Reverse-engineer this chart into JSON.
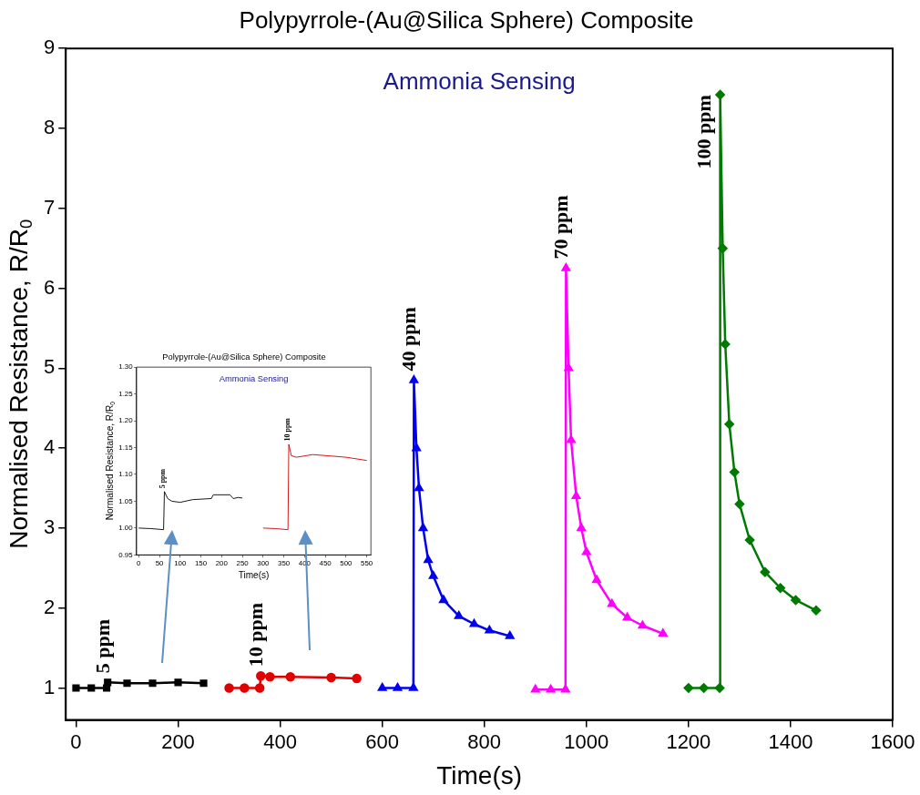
{
  "chart_data": [
    {
      "type": "line",
      "title": "Polypyrrole-(Au@Silica Sphere) Composite",
      "xlabel": "Time(s)",
      "ylabel": "Normalised Resistance, R/R$_{0}$",
      "xlim": [
        -20,
        1600
      ],
      "ylim": [
        0.6,
        9
      ],
      "xticks": [
        0,
        200,
        400,
        600,
        800,
        1000,
        1200,
        1400,
        1600
      ],
      "yticks": [
        1,
        2,
        3,
        4,
        5,
        6,
        7,
        8,
        9
      ],
      "grid": false,
      "annotations": [
        "Ammonia Sensing",
        {
          "text": "5 ppm",
          "x": 62,
          "y": 1.07
        },
        {
          "text": "10 ppm",
          "x": 362,
          "y": 1.15
        },
        {
          "text": "40 ppm",
          "x": 662,
          "y": 4.85
        },
        {
          "text": "70 ppm",
          "x": 960,
          "y": 6.25
        },
        {
          "text": "100 ppm",
          "x": 1262,
          "y": 8.42
        }
      ],
      "series": [
        {
          "color": "#000000",
          "marker": "square",
          "x": [
            0,
            30,
            60,
            62,
            100,
            150,
            200,
            250
          ],
          "values": [
            1.0,
            1.0,
            1.0,
            1.07,
            1.06,
            1.06,
            1.07,
            1.06
          ]
        },
        {
          "color": "#e00000",
          "marker": "circle",
          "x": [
            300,
            330,
            360,
            362,
            380,
            420,
            500,
            550
          ],
          "values": [
            1.0,
            1.0,
            1.0,
            1.15,
            1.14,
            1.14,
            1.13,
            1.12
          ]
        },
        {
          "color": "#0000ee",
          "marker": "triangle",
          "x": [
            600,
            630,
            661,
            662,
            667,
            672,
            680,
            690,
            700,
            720,
            750,
            780,
            810,
            850
          ],
          "values": [
            1.0,
            1.0,
            1.0,
            4.85,
            4.0,
            3.5,
            3.0,
            2.6,
            2.4,
            2.1,
            1.9,
            1.8,
            1.72,
            1.65
          ]
        },
        {
          "color": "#ff00ff",
          "marker": "triangle",
          "x": [
            900,
            930,
            959,
            960,
            965,
            970,
            980,
            990,
            1000,
            1020,
            1050,
            1080,
            1110,
            1150
          ],
          "values": [
            0.98,
            0.98,
            0.98,
            6.25,
            5.0,
            4.1,
            3.4,
            3.0,
            2.7,
            2.35,
            2.05,
            1.88,
            1.78,
            1.68
          ]
        },
        {
          "color": "#007a00",
          "marker": "diamond",
          "x": [
            1200,
            1230,
            1261,
            1262,
            1267,
            1272,
            1280,
            1290,
            1300,
            1320,
            1350,
            1380,
            1410,
            1450
          ],
          "values": [
            1.0,
            1.0,
            1.0,
            8.42,
            6.5,
            5.3,
            4.3,
            3.7,
            3.3,
            2.85,
            2.45,
            2.25,
            2.1,
            1.97
          ]
        }
      ]
    },
    {
      "type": "line",
      "title": "Polypyrrole-(Au@Silica Sphere) Composite",
      "xlabel": "Time(s)",
      "ylabel": "Normalised Resistance, R/R$_{0}$",
      "xlim": [
        -5,
        560
      ],
      "ylim": [
        0.95,
        1.3
      ],
      "xticks": [
        0,
        50,
        100,
        150,
        200,
        250,
        300,
        350,
        400,
        450,
        500,
        550
      ],
      "yticks": [
        {
          "value": 0.95,
          "label": "0.95"
        },
        {
          "value": 1,
          "label": "1.00"
        },
        {
          "value": 1.05,
          "label": "1.05"
        },
        {
          "value": 1.1,
          "label": "1.10"
        },
        {
          "value": 1.15,
          "label": "1.15"
        },
        {
          "value": 1.2,
          "label": "1.20"
        },
        {
          "value": 1.25,
          "label": "1.25"
        },
        {
          "value": 1.3,
          "label": "1.30"
        }
      ],
      "grid": false,
      "marker": "none",
      "annotations": [
        "Ammonia Sensing",
        {
          "text": "5 ppm",
          "x": 62,
          "y": 1.068
        },
        {
          "text": "10 ppm",
          "x": 362,
          "y": 1.156
        }
      ],
      "series": [
        {
          "color": "#000000",
          "x": [
            0,
            30,
            60,
            62,
            70,
            80,
            100,
            130,
            175,
            180,
            220,
            228,
            240,
            250
          ],
          "values": [
            1.0,
            0.999,
            0.997,
            1.068,
            1.055,
            1.05,
            1.048,
            1.053,
            1.055,
            1.062,
            1.062,
            1.055,
            1.057,
            1.056
          ]
        },
        {
          "color": "#cc0000",
          "x": [
            300,
            330,
            360,
            362,
            368,
            380,
            420,
            500,
            550
          ],
          "values": [
            1.0,
            0.999,
            0.997,
            1.156,
            1.135,
            1.132,
            1.137,
            1.132,
            1.126
          ]
        }
      ]
    }
  ]
}
